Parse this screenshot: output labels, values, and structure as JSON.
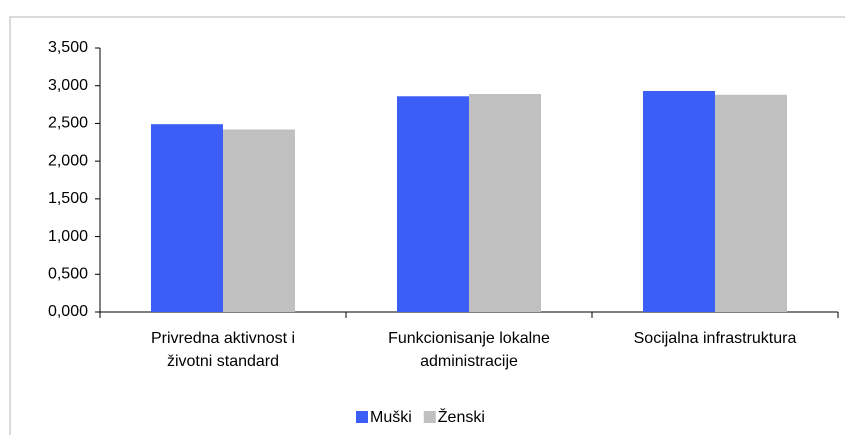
{
  "chart_data": {
    "type": "bar",
    "categories": [
      [
        "Privredna aktivnost i",
        "životni standard"
      ],
      [
        "Funkcionisanje lokalne",
        "administracije"
      ],
      [
        "Socijalna infrastruktura"
      ]
    ],
    "series": [
      {
        "name": "Muški",
        "color": "#3a5ef6",
        "values": [
          2.49,
          2.86,
          2.93
        ]
      },
      {
        "name": "Ženski",
        "color": "#c0c0c0",
        "values": [
          2.42,
          2.89,
          2.88
        ]
      }
    ],
    "ylim": [
      0,
      3.5
    ],
    "yticks": [
      {
        "value": 0,
        "label": "0,000"
      },
      {
        "value": 0.5,
        "label": "0,500"
      },
      {
        "value": 1,
        "label": "1,000"
      },
      {
        "value": 1.5,
        "label": "1,500"
      },
      {
        "value": 2,
        "label": "2,000"
      },
      {
        "value": 2.5,
        "label": "2,500"
      },
      {
        "value": 3,
        "label": "3,000"
      },
      {
        "value": 3.5,
        "label": "3,500"
      }
    ],
    "legend": "bottom"
  }
}
